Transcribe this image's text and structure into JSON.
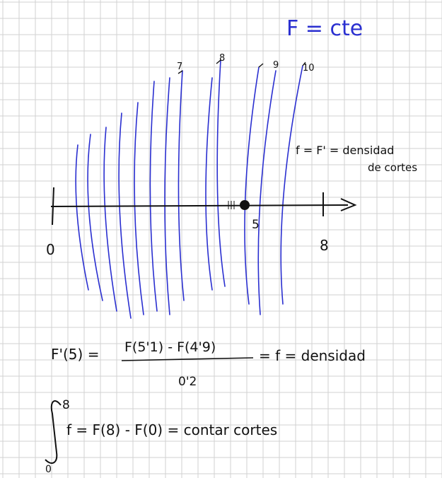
{
  "header": {
    "title": "F = cte"
  },
  "notes": {
    "density_line1": "f = F' = densidad",
    "density_line2": "de cortes"
  },
  "axis": {
    "origin_label": "0",
    "mid_label": "5",
    "end_label": "8"
  },
  "contour_labels": [
    "7",
    "8",
    "9",
    "10"
  ],
  "formulas": {
    "derivative_lhs": "F'(5) =",
    "derivative_numerator": "F(5'1) - F(4'9)",
    "derivative_denominator": "0'2",
    "derivative_rhs": "= f = densidad",
    "integral_upper": "8",
    "integral_lower": "0",
    "integral_body": "f = F(8) - F(0) = contar cortes"
  },
  "colors": {
    "grid": "#d2d2d2",
    "blue_ink": "#2a2fd0",
    "black_ink": "#111111"
  }
}
